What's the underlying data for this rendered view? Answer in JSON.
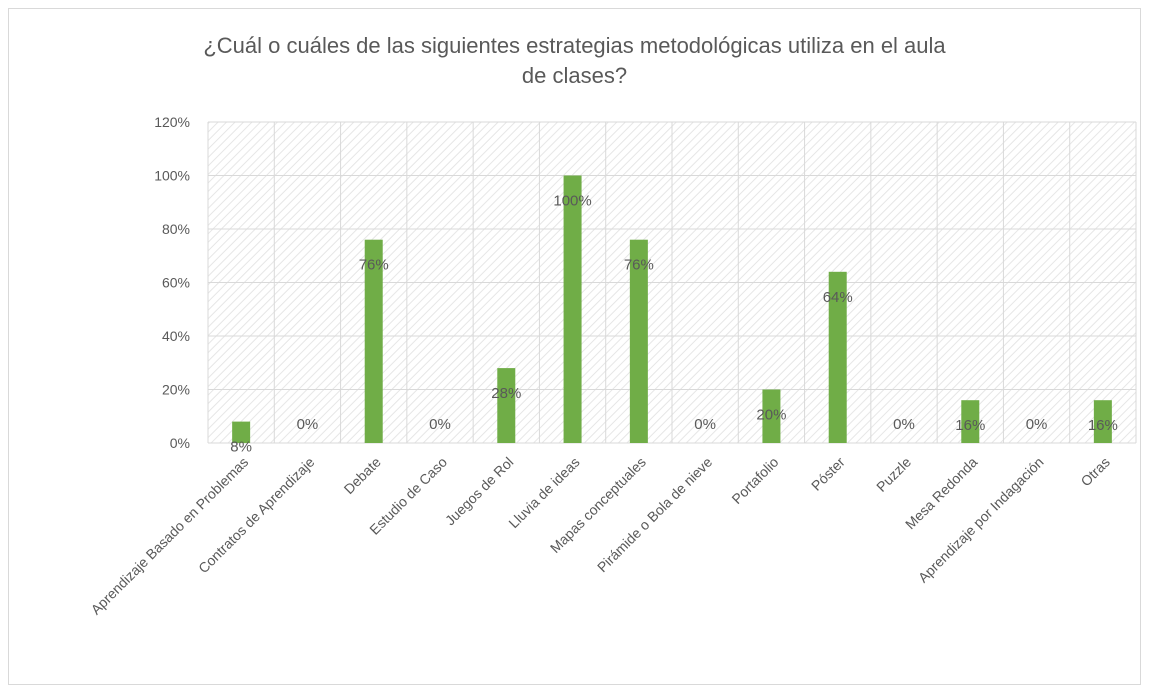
{
  "chart_data": {
    "type": "bar",
    "title_line1": "¿Cuál o cuáles de las siguientes estrategias metodológicas utiliza en el aula",
    "title_line2": "de clases?",
    "categories": [
      "Aprendizaje Basado en Problemas",
      "Contratos de Aprendizaje",
      "Debate",
      "Estudio de Caso",
      "Juegos de Rol",
      "Lluvia de ideas",
      "Mapas conceptuales",
      "Pirámide o Bola de nieve",
      "Portafolio",
      "Póster",
      "Puzzle",
      "Mesa Redonda",
      "Aprendizaje por Indagación",
      "Otras"
    ],
    "values": [
      8,
      0,
      76,
      0,
      28,
      100,
      76,
      0,
      20,
      64,
      0,
      16,
      0,
      16
    ],
    "data_labels": [
      "8%",
      "0%",
      "76%",
      "0%",
      "28%",
      "100%",
      "76%",
      "0%",
      "20%",
      "64%",
      "0%",
      "16%",
      "0%",
      "16%"
    ],
    "ylim": [
      0,
      120
    ],
    "y_ticks": [
      "0%",
      "20%",
      "40%",
      "60%",
      "80%",
      "100%",
      "120%"
    ],
    "grid": true,
    "legend": "none",
    "bar_color": "#70ad47",
    "xlabel": "",
    "ylabel": ""
  }
}
